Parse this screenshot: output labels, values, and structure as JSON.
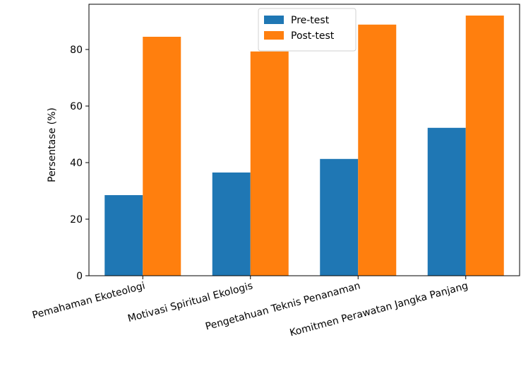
{
  "chart_data": {
    "type": "bar",
    "title": "",
    "xlabel": "",
    "ylabel": "Persentase (%)",
    "ylim": [
      0,
      96
    ],
    "yticks": [
      0,
      20,
      40,
      60,
      80
    ],
    "categories": [
      "Pemahaman Ekoteologi",
      "Motivasi Spiritual Ekologis",
      "Pengetahuan Teknis Penanaman",
      "Komitmen Perawatan Jangka Panjang"
    ],
    "series": [
      {
        "name": "Pre-test",
        "color": "#1f77b4",
        "values": [
          28.5,
          36.5,
          41.3,
          52.3
        ]
      },
      {
        "name": "Post-test",
        "color": "#ff7f0e",
        "values": [
          84.5,
          79.3,
          88.8,
          92.0
        ]
      }
    ],
    "legend_position": "top-center",
    "grid": false
  }
}
